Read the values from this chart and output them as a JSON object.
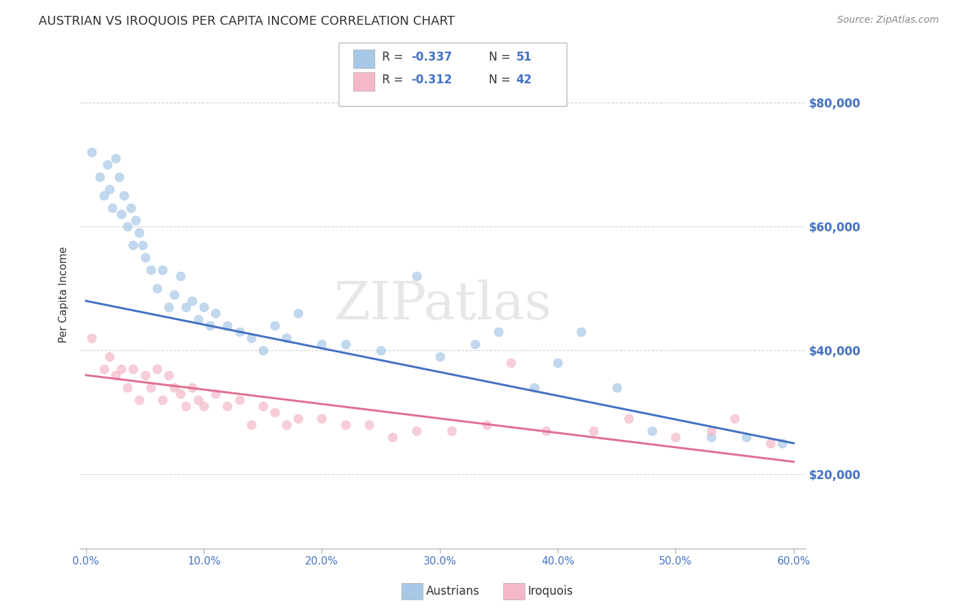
{
  "title": "AUSTRIAN VS IROQUOIS PER CAPITA INCOME CORRELATION CHART",
  "source": "Source: ZipAtlas.com",
  "ylabel": "Per Capita Income",
  "xlabel_ticks": [
    "0.0%",
    "",
    "",
    "",
    "",
    "",
    "",
    "",
    "10.0%",
    "",
    "",
    "",
    "",
    "",
    "",
    "",
    "20.0%",
    "",
    "",
    "",
    "",
    "",
    "",
    "",
    "30.0%",
    "",
    "",
    "",
    "",
    "",
    "",
    "",
    "40.0%",
    "",
    "",
    "",
    "",
    "",
    "",
    "",
    "50.0%",
    "",
    "",
    "",
    "",
    "",
    "",
    "",
    "60.0%"
  ],
  "xlabel_vals": [
    0.0,
    0.1,
    0.2,
    0.3,
    0.4,
    0.5,
    0.6
  ],
  "xlabel_labels": [
    "0.0%",
    "10.0%",
    "20.0%",
    "30.0%",
    "40.0%",
    "50.0%",
    "60.0%"
  ],
  "ytick_labels": [
    "$20,000",
    "$40,000",
    "$60,000",
    "$80,000"
  ],
  "ytick_vals": [
    20000,
    40000,
    60000,
    80000
  ],
  "ytick_color": "#4472c4",
  "legend_r_austrians_label": "R = ",
  "legend_r_austrians_val": "-0.337",
  "legend_n_austrians_label": "N = ",
  "legend_n_austrians_val": "51",
  "legend_r_iroquois_label": "R = ",
  "legend_r_iroquois_val": "-0.312",
  "legend_n_iroquois_label": "N = ",
  "legend_n_iroquois_val": "42",
  "color_austrians": "#a8c8e8",
  "color_iroquois": "#f4b8c8",
  "color_line_austrians": "#4472c4",
  "color_line_iroquois": "#e07090",
  "watermark": "ZIPatlas",
  "watermark_color": "#d8d8d8",
  "austrians_x": [
    0.005,
    0.012,
    0.015,
    0.018,
    0.02,
    0.022,
    0.025,
    0.028,
    0.03,
    0.032,
    0.035,
    0.038,
    0.04,
    0.042,
    0.045,
    0.048,
    0.05,
    0.055,
    0.06,
    0.065,
    0.07,
    0.075,
    0.08,
    0.085,
    0.09,
    0.095,
    0.1,
    0.105,
    0.11,
    0.12,
    0.13,
    0.14,
    0.15,
    0.16,
    0.17,
    0.18,
    0.2,
    0.22,
    0.25,
    0.28,
    0.3,
    0.33,
    0.35,
    0.38,
    0.4,
    0.42,
    0.45,
    0.48,
    0.53,
    0.56,
    0.59
  ],
  "austrians_y": [
    72000,
    68000,
    65000,
    70000,
    66000,
    63000,
    71000,
    68000,
    62000,
    65000,
    60000,
    63000,
    57000,
    61000,
    59000,
    57000,
    55000,
    53000,
    50000,
    53000,
    47000,
    49000,
    52000,
    47000,
    48000,
    45000,
    47000,
    44000,
    46000,
    44000,
    43000,
    42000,
    40000,
    44000,
    42000,
    46000,
    41000,
    41000,
    40000,
    52000,
    39000,
    41000,
    43000,
    34000,
    38000,
    43000,
    34000,
    27000,
    26000,
    26000,
    25000
  ],
  "iroquois_x": [
    0.005,
    0.015,
    0.02,
    0.025,
    0.03,
    0.035,
    0.04,
    0.045,
    0.05,
    0.055,
    0.06,
    0.065,
    0.07,
    0.075,
    0.08,
    0.085,
    0.09,
    0.095,
    0.1,
    0.11,
    0.12,
    0.13,
    0.14,
    0.15,
    0.16,
    0.17,
    0.18,
    0.2,
    0.22,
    0.24,
    0.26,
    0.28,
    0.31,
    0.34,
    0.36,
    0.39,
    0.43,
    0.46,
    0.5,
    0.53,
    0.55,
    0.58
  ],
  "iroquois_y": [
    42000,
    37000,
    39000,
    36000,
    37000,
    34000,
    37000,
    32000,
    36000,
    34000,
    37000,
    32000,
    36000,
    34000,
    33000,
    31000,
    34000,
    32000,
    31000,
    33000,
    31000,
    32000,
    28000,
    31000,
    30000,
    28000,
    29000,
    29000,
    28000,
    28000,
    26000,
    27000,
    27000,
    28000,
    38000,
    27000,
    27000,
    29000,
    26000,
    27000,
    29000,
    25000
  ],
  "austrians_trendline_x": [
    0.0,
    0.6
  ],
  "austrians_trendline_y": [
    48000,
    25000
  ],
  "iroquois_trendline_x": [
    0.0,
    0.6
  ],
  "iroquois_trendline_y": [
    36000,
    22000
  ],
  "xlim": [
    -0.005,
    0.61
  ],
  "ylim": [
    8000,
    90000
  ],
  "background_color": "#ffffff",
  "grid_color": "#cccccc",
  "bottom_legend_austrians": "Austrians",
  "bottom_legend_iroquois": "Iroquois"
}
